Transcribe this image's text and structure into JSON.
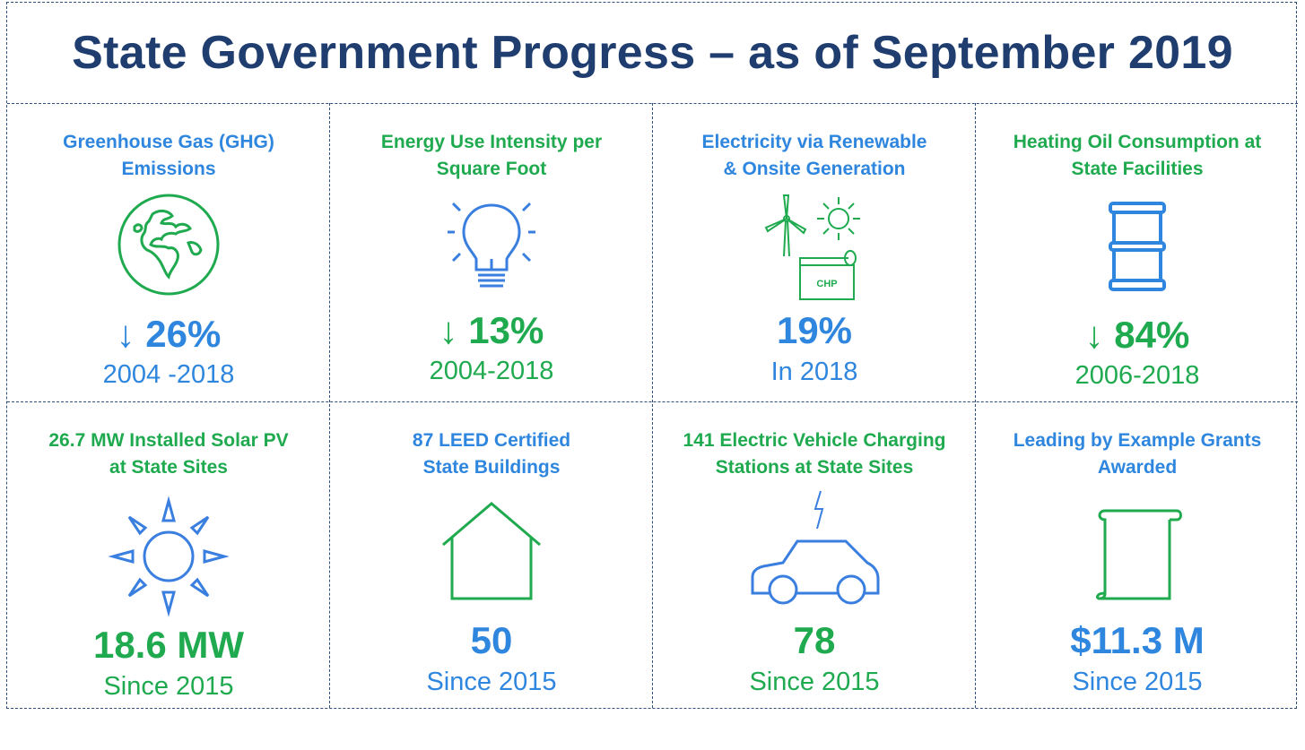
{
  "title": "State Government Progress – as of September 2019",
  "colors": {
    "blue": "#2e86de",
    "green": "#1faa4f",
    "title": "#1f3d6e",
    "border": "#2f4f78"
  },
  "cells": [
    {
      "heading": "Greenhouse Gas (GHG)\nEmissions",
      "icon": "globe-icon",
      "value": "↓ 26%",
      "sub": "2004 -2018",
      "color": "blue"
    },
    {
      "heading": "Energy Use Intensity per\nSquare Foot",
      "icon": "lightbulb-icon",
      "value": "↓ 13%",
      "sub": "2004-2018",
      "color": "green"
    },
    {
      "heading": "Electricity via Renewable\n& Onsite Generation",
      "icon": "renewable-generation-icon",
      "icon_label": "CHP",
      "value": "19%",
      "sub": "In 2018",
      "color": "blue"
    },
    {
      "heading": "Heating Oil Consumption at\nState Facilities",
      "icon": "oil-barrel-icon",
      "value": "↓ 84%",
      "sub": "2006-2018",
      "color": "green"
    },
    {
      "heading": "26.7 MW Installed Solar PV\nat State Sites",
      "icon": "sun-icon",
      "value": "18.6 MW",
      "sub": "Since 2015",
      "color": "green"
    },
    {
      "heading": "87 LEED Certified\nState Buildings",
      "icon": "house-icon",
      "value": "50",
      "sub": "Since 2015",
      "color": "blue"
    },
    {
      "heading": "141 Electric Vehicle Charging\nStations at State Sites",
      "icon": "electric-car-icon",
      "value": "78",
      "sub": "Since 2015",
      "color": "green"
    },
    {
      "heading": "Leading by Example Grants\nAwarded",
      "icon": "scroll-icon",
      "value": "$11.3 M",
      "sub": "Since 2015",
      "color": "blue"
    }
  ]
}
